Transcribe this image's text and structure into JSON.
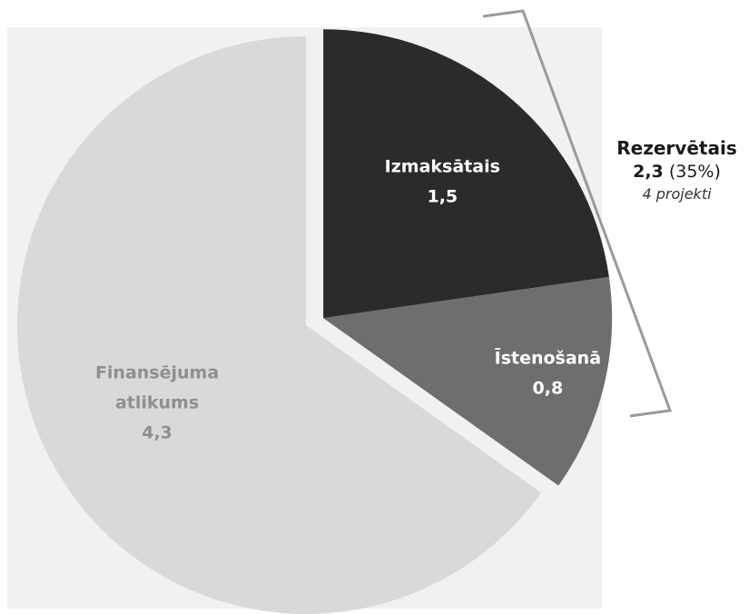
{
  "chart_data": {
    "type": "pie",
    "title": "",
    "slices": [
      {
        "label": "Izmaksātais",
        "value": 1.5,
        "value_text": "1,5",
        "color": "#2b2b2b",
        "label_color": "#ffffff",
        "exploded": true
      },
      {
        "label": "Īstenošanā",
        "value": 0.8,
        "value_text": "0,8",
        "color": "#6e6e6e",
        "label_color": "#ffffff",
        "exploded": true
      },
      {
        "label_lines": [
          "Finansējuma",
          "atlikums"
        ],
        "value": 4.3,
        "value_text": "4,3",
        "color": "#d9d9d9",
        "label_color": "#8f8f8f",
        "exploded": false
      }
    ],
    "callout": {
      "title": "Rezervētais",
      "value_text": "2,3",
      "percent_text": "(35%)",
      "note": "4 projekti",
      "bracket_color": "#9a9a9a"
    }
  }
}
